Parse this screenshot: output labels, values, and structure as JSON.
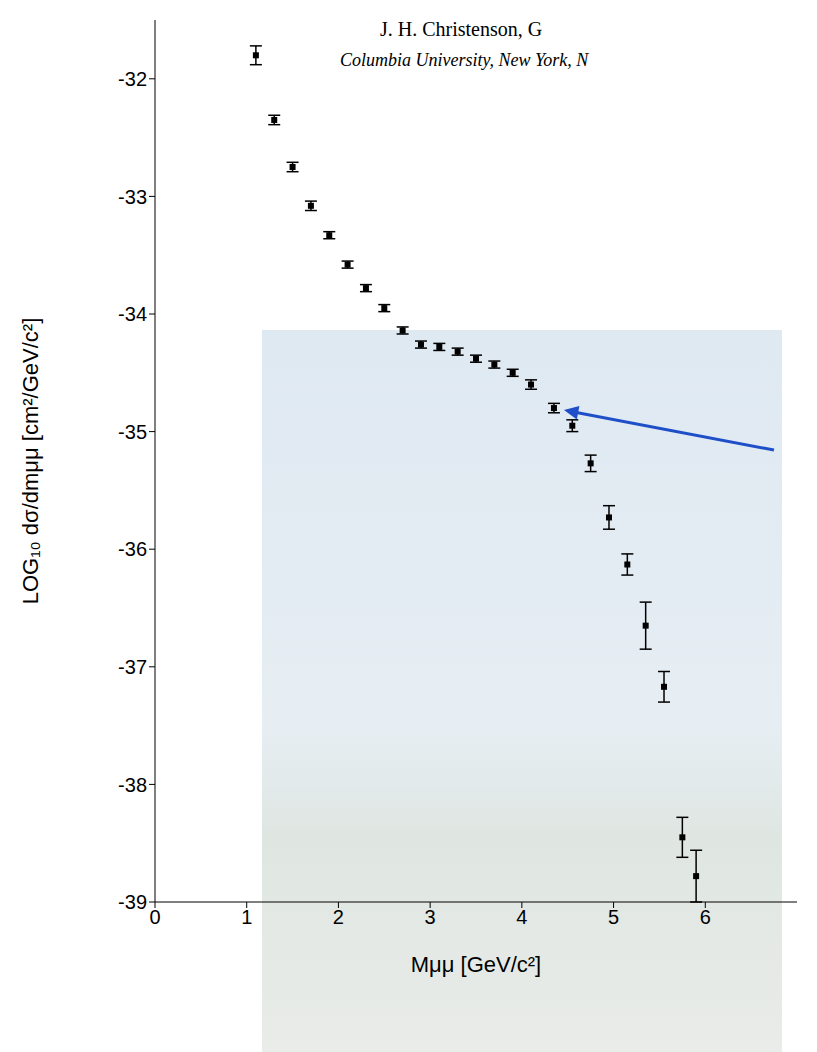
{
  "chart_data": {
    "type": "scatter",
    "title": "J. H. Christenson, G",
    "subtitle": "Columbia University, New York, N",
    "x_label": "Mμμ [GeV/c²]",
    "y_label": "LOG₁₀ dσ/dmμμ [cm²/GeV/c²]",
    "x": [
      1.1,
      1.3,
      1.5,
      1.7,
      1.9,
      2.1,
      2.3,
      2.5,
      2.7,
      2.9,
      3.1,
      3.3,
      3.5,
      3.7,
      3.9,
      4.1,
      4.35,
      4.55,
      4.75,
      4.95,
      5.15,
      5.35,
      5.55,
      5.75,
      5.9
    ],
    "values": [
      -31.8,
      -32.35,
      -32.75,
      -33.08,
      -33.33,
      -33.58,
      -33.78,
      -33.95,
      -34.14,
      -34.26,
      -34.28,
      -34.32,
      -34.38,
      -34.43,
      -34.5,
      -34.6,
      -34.8,
      -34.95,
      -35.27,
      -35.73,
      -36.13,
      -36.65,
      -37.17,
      -38.45,
      -38.78
    ],
    "errors": [
      0.08,
      0.04,
      0.04,
      0.04,
      0.03,
      0.03,
      0.03,
      0.03,
      0.03,
      0.03,
      0.03,
      0.03,
      0.03,
      0.03,
      0.03,
      0.04,
      0.04,
      0.05,
      0.07,
      0.1,
      0.09,
      0.2,
      0.13,
      0.17,
      0.22
    ],
    "color": "#000000",
    "marker": "square",
    "xlim": [
      0,
      7
    ],
    "ylim": [
      -39,
      -31.5
    ],
    "xticks": [
      0,
      1,
      2,
      3,
      4,
      5,
      6
    ],
    "yticks": [
      -39,
      -38,
      -37,
      -36,
      -35,
      -34,
      -33,
      -32
    ],
    "grid": false,
    "arrow": {
      "x": 4.35,
      "y": -34.8,
      "color": "#1f4fc8"
    }
  }
}
